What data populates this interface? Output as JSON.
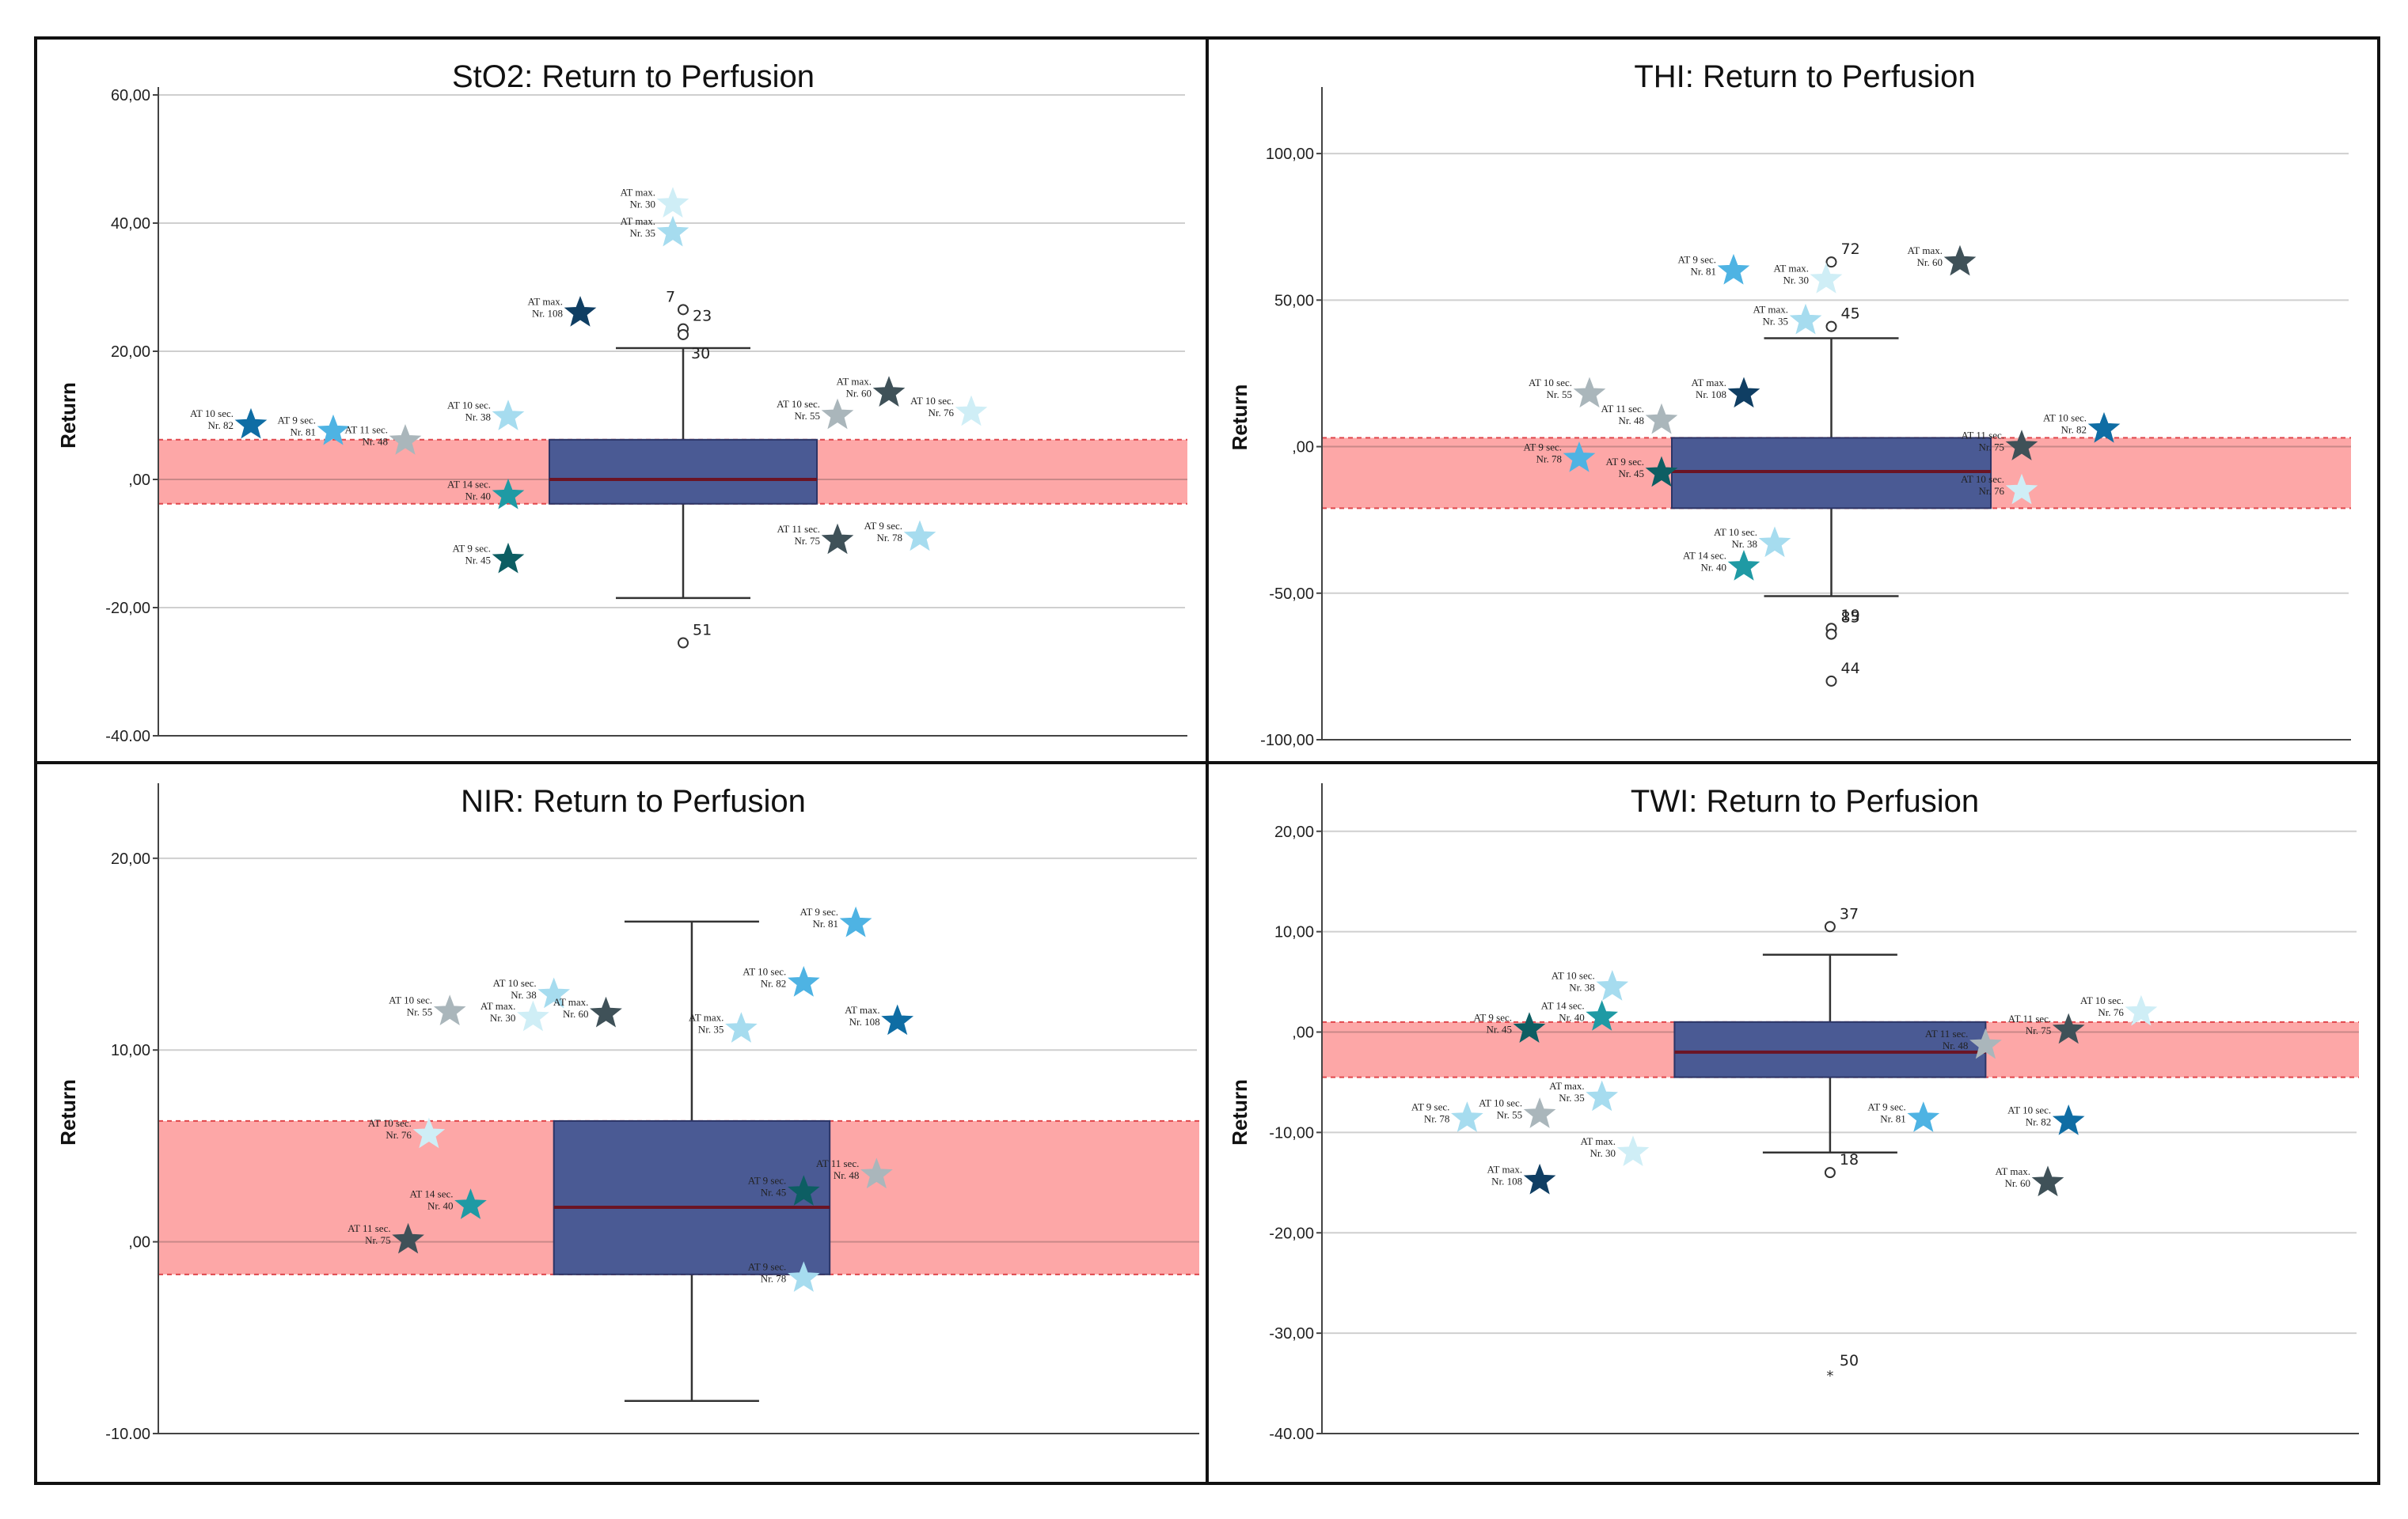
{
  "figure_title": "Return to Perfusion box plots (StO2, THI, NIR, TWI)",
  "colors": {
    "box": "#4a5a94",
    "band": "#fda7a7",
    "band_edge": "#e0474c",
    "median": "#6b1424",
    "grid": "#cfcfcf",
    "frame": "#111111",
    "star_light": "#cfeef6",
    "star_sky": "#a6dcef",
    "star_azure": "#4eb3e3",
    "star_blue": "#0f6da4",
    "star_navy": "#0f3e63",
    "star_teal": "#1f9aa4",
    "star_darkteal": "#0d5e63",
    "star_slate": "#3f5158",
    "star_grey": "#aab6bb"
  },
  "chart_data": [
    {
      "type": "box",
      "title": "StO2: Return to Perfusion",
      "ylabel": "Return",
      "ylim": [
        -40,
        60
      ],
      "yticks": [
        60,
        40,
        20,
        0,
        -20,
        -40
      ],
      "ytick_labels": [
        "60,00",
        "40,00",
        "20,00",
        ",00",
        "-20,00",
        "-40.00"
      ],
      "box": {
        "q1": -3.8,
        "median": 0,
        "q3": 6.2,
        "whisker_low": -18.5,
        "whisker_high": 20.5
      },
      "band": [
        -3.8,
        6.2
      ],
      "outliers": [
        {
          "value": 26.5,
          "label": "7",
          "lx": -0.01
        },
        {
          "value": 23.5,
          "label": "23",
          "lx": 0.01
        },
        {
          "value": 22.6,
          "label": "30",
          "lx": 0.01,
          "hidden": true
        },
        {
          "value": -25.5,
          "label": "51",
          "lx": 0.01
        }
      ],
      "annotations": [
        {
          "x": 0.09,
          "y": 8.5,
          "line1": "AT 10 sec.",
          "line2": "Nr. 82",
          "color": "blue"
        },
        {
          "x": 0.17,
          "y": 7.5,
          "line1": "AT 9 sec.",
          "line2": "Nr. 81",
          "color": "azure"
        },
        {
          "x": 0.24,
          "y": 6.0,
          "line1": "AT 11 sec.",
          "line2": "Nr. 48",
          "color": "grey"
        },
        {
          "x": 0.34,
          "y": 9.8,
          "line1": "AT 10 sec.",
          "line2": "Nr. 38",
          "color": "sky"
        },
        {
          "x": 0.34,
          "y": -2.5,
          "line1": "AT 14 sec.",
          "line2": "Nr. 40",
          "color": "teal"
        },
        {
          "x": 0.34,
          "y": -12.5,
          "line1": "AT 9 sec.",
          "line2": "Nr. 45",
          "color": "darkteal"
        },
        {
          "x": 0.41,
          "y": 26.0,
          "line1": "AT max.",
          "line2": "Nr. 108",
          "color": "navy"
        },
        {
          "x": 0.5,
          "y": 43.0,
          "line1": "AT max.",
          "line2": "Nr. 30",
          "color": "light"
        },
        {
          "x": 0.5,
          "y": 38.5,
          "line1": "AT max.",
          "line2": "Nr. 35",
          "color": "sky"
        },
        {
          "x": 0.66,
          "y": 10.0,
          "line1": "AT 10 sec.",
          "line2": "Nr. 55",
          "color": "grey"
        },
        {
          "x": 0.71,
          "y": 13.5,
          "line1": "AT max.",
          "line2": "Nr. 60",
          "color": "slate"
        },
        {
          "x": 0.79,
          "y": 10.5,
          "line1": "AT 10 sec.",
          "line2": "Nr. 76",
          "color": "light"
        },
        {
          "x": 0.66,
          "y": -9.5,
          "line1": "AT 11 sec.",
          "line2": "Nr. 75",
          "color": "slate"
        },
        {
          "x": 0.74,
          "y": -9.0,
          "line1": "AT 9 sec.",
          "line2": "Nr. 78",
          "color": "sky"
        }
      ]
    },
    {
      "type": "box",
      "title": "THI: Return to Perfusion",
      "ylabel": "Return",
      "ylim": [
        -100,
        120
      ],
      "yticks": [
        100,
        50,
        0,
        -50,
        -100
      ],
      "ytick_labels": [
        "100,00",
        "50,00",
        ",00",
        "-50,00",
        "-100,00"
      ],
      "box": {
        "q1": -21,
        "median": -8.5,
        "q3": 3,
        "whisker_low": -51,
        "whisker_high": 37
      },
      "band": [
        -21,
        3
      ],
      "outliers": [
        {
          "value": 63,
          "label": "72",
          "lx": 0.01
        },
        {
          "value": 41,
          "label": "45",
          "lx": 0.01
        },
        {
          "value": -62,
          "label": "19",
          "lx": 0.01
        },
        {
          "value": -64,
          "label": "85",
          "lx": 0.01,
          "ly": -5
        },
        {
          "value": -80,
          "label": "44",
          "lx": 0.01
        }
      ],
      "annotations": [
        {
          "x": 0.4,
          "y": 60,
          "line1": "AT 9 sec.",
          "line2": "Nr. 81",
          "color": "azure"
        },
        {
          "x": 0.49,
          "y": 57,
          "line1": "AT max.",
          "line2": "Nr. 30",
          "color": "light"
        },
        {
          "x": 0.47,
          "y": 43,
          "line1": "AT max.",
          "line2": "Nr. 35",
          "color": "sky"
        },
        {
          "x": 0.62,
          "y": 63,
          "line1": "AT max.",
          "line2": "Nr. 60",
          "color": "slate"
        },
        {
          "x": 0.26,
          "y": 18,
          "line1": "AT 10 sec.",
          "line2": "Nr. 55",
          "color": "grey"
        },
        {
          "x": 0.33,
          "y": 9,
          "line1": "AT 11 sec.",
          "line2": "Nr. 48",
          "color": "grey"
        },
        {
          "x": 0.41,
          "y": 18,
          "line1": "AT max.",
          "line2": "Nr. 108",
          "color": "navy"
        },
        {
          "x": 0.25,
          "y": -4,
          "line1": "AT 9 sec.",
          "line2": "Nr. 78",
          "color": "azure"
        },
        {
          "x": 0.33,
          "y": -9,
          "line1": "AT 9 sec.",
          "line2": "Nr. 45",
          "color": "darkteal"
        },
        {
          "x": 0.44,
          "y": -33,
          "line1": "AT 10 sec.",
          "line2": "Nr. 38",
          "color": "sky"
        },
        {
          "x": 0.41,
          "y": -41,
          "line1": "AT 14 sec.",
          "line2": "Nr. 40",
          "color": "teal"
        },
        {
          "x": 0.68,
          "y": 0,
          "line1": "AT 11 sec.",
          "line2": "Nr. 75",
          "color": "slate"
        },
        {
          "x": 0.76,
          "y": 6,
          "line1": "AT 10 sec.",
          "line2": "Nr. 82",
          "color": "blue"
        },
        {
          "x": 0.68,
          "y": -15,
          "line1": "AT 10 sec.",
          "line2": "Nr. 76",
          "color": "light"
        }
      ]
    },
    {
      "type": "box",
      "title": "NIR: Return to Perfusion",
      "ylabel": "Return",
      "ylim": [
        -10,
        23.5
      ],
      "yticks": [
        20,
        10,
        0,
        -10
      ],
      "ytick_labels": [
        "20,00",
        "10,00",
        ",00",
        "-10.00"
      ],
      "box": {
        "q1": -1.7,
        "median": 1.8,
        "q3": 6.3,
        "whisker_low": -8.3,
        "whisker_high": 16.7
      },
      "band": [
        -1.7,
        6.3
      ],
      "outliers": [],
      "annotations": [
        {
          "x": 0.38,
          "y": 12.9,
          "line1": "AT 10 sec.",
          "line2": "Nr. 38",
          "color": "sky"
        },
        {
          "x": 0.36,
          "y": 11.7,
          "line1": "AT max.",
          "line2": "Nr. 30",
          "color": "light"
        },
        {
          "x": 0.28,
          "y": 12.0,
          "line1": "AT 10 sec.",
          "line2": "Nr. 55",
          "color": "grey"
        },
        {
          "x": 0.43,
          "y": 11.9,
          "line1": "AT max.",
          "line2": "Nr. 60",
          "color": "slate"
        },
        {
          "x": 0.56,
          "y": 11.1,
          "line1": "AT max.",
          "line2": "Nr. 35",
          "color": "sky"
        },
        {
          "x": 0.67,
          "y": 16.6,
          "line1": "AT 9 sec.",
          "line2": "Nr. 81",
          "color": "azure"
        },
        {
          "x": 0.62,
          "y": 13.5,
          "line1": "AT 10 sec.",
          "line2": "Nr. 82",
          "color": "azure"
        },
        {
          "x": 0.71,
          "y": 11.5,
          "line1": "AT max.",
          "line2": "Nr. 108",
          "color": "blue"
        },
        {
          "x": 0.26,
          "y": 5.6,
          "line1": "AT 10 sec.",
          "line2": "Nr. 76",
          "color": "light"
        },
        {
          "x": 0.3,
          "y": 1.9,
          "line1": "AT 14 sec.",
          "line2": "Nr. 40",
          "color": "teal"
        },
        {
          "x": 0.24,
          "y": 0.1,
          "line1": "AT 11 sec.",
          "line2": "Nr. 75",
          "color": "slate"
        },
        {
          "x": 0.62,
          "y": 2.6,
          "line1": "AT 9 sec.",
          "line2": "Nr. 45",
          "color": "darkteal"
        },
        {
          "x": 0.69,
          "y": 3.5,
          "line1": "AT 11 sec.",
          "line2": "Nr. 48",
          "color": "grey"
        },
        {
          "x": 0.62,
          "y": -1.9,
          "line1": "AT 9 sec.",
          "line2": "Nr. 78",
          "color": "sky"
        }
      ]
    },
    {
      "type": "box",
      "title": "TWI: Return to Perfusion",
      "ylabel": "Return",
      "ylim": [
        -40,
        24
      ],
      "yticks": [
        20,
        10,
        0,
        -10,
        -20,
        -30,
        -40
      ],
      "ytick_labels": [
        "20,00",
        "10,00",
        ",00",
        "-10,00",
        "-20,00",
        "-30,00",
        "-40.00"
      ],
      "box": {
        "q1": -4.5,
        "median": -2.0,
        "q3": 1.0,
        "whisker_low": -12,
        "whisker_high": 7.7
      },
      "band": [
        -4.5,
        1.0
      ],
      "outliers": [
        {
          "value": 10.5,
          "label": "37",
          "lx": 0.01
        },
        {
          "value": -14,
          "label": "18",
          "lx": 0.01
        },
        {
          "value": -34,
          "label": "50",
          "lx": 0.01,
          "extreme": true
        }
      ],
      "annotations": [
        {
          "x": 0.28,
          "y": 4.5,
          "line1": "AT 10 sec.",
          "line2": "Nr. 38",
          "color": "sky"
        },
        {
          "x": 0.27,
          "y": 1.5,
          "line1": "AT 14 sec.",
          "line2": "Nr. 40",
          "color": "teal"
        },
        {
          "x": 0.2,
          "y": 0.3,
          "line1": "AT 9 sec.",
          "line2": "Nr. 45",
          "color": "darkteal"
        },
        {
          "x": 0.27,
          "y": -6.5,
          "line1": "AT max.",
          "line2": "Nr. 35",
          "color": "sky"
        },
        {
          "x": 0.21,
          "y": -8.2,
          "line1": "AT 10 sec.",
          "line2": "Nr. 55",
          "color": "grey"
        },
        {
          "x": 0.14,
          "y": -8.6,
          "line1": "AT 9 sec.",
          "line2": "Nr. 78",
          "color": "sky"
        },
        {
          "x": 0.3,
          "y": -12,
          "line1": "AT max.",
          "line2": "Nr. 30",
          "color": "light"
        },
        {
          "x": 0.21,
          "y": -14.8,
          "line1": "AT max.",
          "line2": "Nr. 108",
          "color": "navy"
        },
        {
          "x": 0.72,
          "y": 0.2,
          "line1": "AT 11 sec.",
          "line2": "Nr. 75",
          "color": "slate"
        },
        {
          "x": 0.79,
          "y": 2.0,
          "line1": "AT 10 sec.",
          "line2": "Nr. 76",
          "color": "light"
        },
        {
          "x": 0.64,
          "y": -1.3,
          "line1": "AT 11 sec.",
          "line2": "Nr. 48",
          "color": "grey"
        },
        {
          "x": 0.58,
          "y": -8.6,
          "line1": "AT 9 sec.",
          "line2": "Nr. 81",
          "color": "azure"
        },
        {
          "x": 0.72,
          "y": -8.9,
          "line1": "AT 10 sec.",
          "line2": "Nr. 82",
          "color": "blue"
        },
        {
          "x": 0.7,
          "y": -15,
          "line1": "AT max.",
          "line2": "Nr. 60",
          "color": "slate"
        }
      ]
    }
  ]
}
